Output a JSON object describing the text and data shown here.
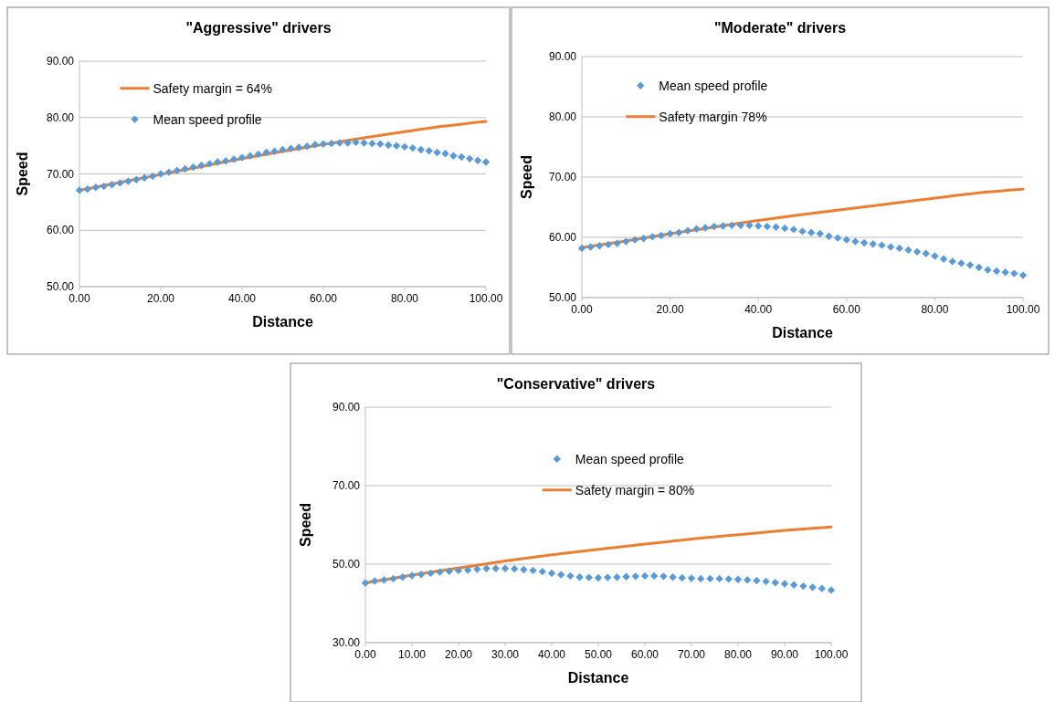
{
  "chart_data": [
    {
      "type": "line",
      "title": "\"Aggressive\" drivers",
      "xlabel": "Distance",
      "ylabel": "Speed",
      "xlim": [
        0,
        100
      ],
      "ylim": [
        50,
        90
      ],
      "xticks": [
        {
          "value": 0,
          "label": "0.00"
        },
        {
          "value": 20,
          "label": "20.00"
        },
        {
          "value": 40,
          "label": "40.00"
        },
        {
          "value": 60,
          "label": "60.00"
        },
        {
          "value": 80,
          "label": "80.00"
        },
        {
          "value": 100,
          "label": "100.00"
        }
      ],
      "yticks": [
        {
          "value": 50,
          "label": "50.00"
        },
        {
          "value": 60,
          "label": "60.00"
        },
        {
          "value": 70,
          "label": "70.00"
        },
        {
          "value": 80,
          "label": "80.00"
        },
        {
          "value": 90,
          "label": "90.00"
        }
      ],
      "grid": "y",
      "legend": "top left",
      "series": [
        {
          "name": "Safety margin = 64%",
          "type": "line",
          "color": "#ed7d31",
          "marker": "none",
          "x": [
            0,
            10,
            20,
            30,
            40,
            50,
            60,
            70,
            80,
            90,
            100
          ],
          "values": [
            67.1,
            68.5,
            69.9,
            71.3,
            72.7,
            74.0,
            75.2,
            76.4,
            77.5,
            78.5,
            79.3
          ]
        },
        {
          "name": "Mean speed profile",
          "type": "scatter",
          "color": "#5b9bd5",
          "marker": "diamond",
          "x": [
            0,
            2,
            4,
            6,
            8,
            10,
            12,
            14,
            16,
            18,
            20,
            22,
            24,
            26,
            28,
            30,
            32,
            34,
            36,
            38,
            40,
            42,
            44,
            46,
            48,
            50,
            52,
            54,
            56,
            58,
            60,
            62,
            64,
            66,
            68,
            70,
            72,
            74,
            76,
            78,
            80,
            82,
            84,
            86,
            88,
            90,
            92,
            94,
            96,
            98,
            100
          ],
          "values": [
            67.1,
            67.3,
            67.6,
            67.8,
            68.1,
            68.4,
            68.7,
            69.0,
            69.3,
            69.6,
            70.0,
            70.3,
            70.6,
            70.9,
            71.2,
            71.5,
            71.8,
            72.1,
            72.3,
            72.6,
            72.9,
            73.2,
            73.5,
            73.8,
            74.0,
            74.3,
            74.5,
            74.7,
            74.9,
            75.2,
            75.3,
            75.4,
            75.5,
            75.5,
            75.6,
            75.5,
            75.4,
            75.3,
            75.1,
            75.0,
            74.8,
            74.6,
            74.3,
            74.1,
            73.8,
            73.6,
            73.2,
            73.0,
            72.7,
            72.4,
            72.1
          ]
        }
      ]
    },
    {
      "type": "line",
      "title": "\"Moderate\" drivers",
      "xlabel": "Distance",
      "ylabel": "Speed",
      "xlim": [
        0,
        100
      ],
      "ylim": [
        50,
        90
      ],
      "xticks": [
        {
          "value": 0,
          "label": "0.00"
        },
        {
          "value": 20,
          "label": "20.00"
        },
        {
          "value": 40,
          "label": "40.00"
        },
        {
          "value": 60,
          "label": "60.00"
        },
        {
          "value": 80,
          "label": "80.00"
        },
        {
          "value": 100,
          "label": "100.00"
        }
      ],
      "yticks": [
        {
          "value": 50,
          "label": "50.00"
        },
        {
          "value": 60,
          "label": "60.00"
        },
        {
          "value": 70,
          "label": "70.00"
        },
        {
          "value": 80,
          "label": "80.00"
        },
        {
          "value": 90,
          "label": "90.00"
        }
      ],
      "grid": "y",
      "legend": "top left",
      "series": [
        {
          "name": "Mean speed profile",
          "type": "scatter",
          "color": "#5b9bd5",
          "marker": "diamond",
          "x": [
            0,
            2,
            4,
            6,
            8,
            10,
            12,
            14,
            16,
            18,
            20,
            22,
            24,
            26,
            28,
            30,
            32,
            34,
            36,
            38,
            40,
            42,
            44,
            46,
            48,
            50,
            52,
            54,
            56,
            58,
            60,
            62,
            64,
            66,
            68,
            70,
            72,
            74,
            76,
            78,
            80,
            82,
            84,
            86,
            88,
            90,
            92,
            94,
            96,
            98,
            100
          ],
          "values": [
            58.2,
            58.4,
            58.6,
            58.8,
            59.0,
            59.3,
            59.6,
            59.8,
            60.1,
            60.3,
            60.6,
            60.8,
            61.1,
            61.4,
            61.6,
            61.8,
            61.9,
            62.0,
            62.0,
            62.0,
            61.9,
            61.8,
            61.7,
            61.5,
            61.3,
            61.0,
            60.8,
            60.6,
            60.2,
            59.9,
            59.6,
            59.3,
            59.1,
            58.9,
            58.7,
            58.4,
            58.2,
            57.9,
            57.6,
            57.3,
            56.9,
            56.4,
            56.0,
            55.7,
            55.4,
            55.0,
            54.6,
            54.4,
            54.2,
            54.0,
            53.7
          ]
        },
        {
          "name": "Safety margin 78%",
          "type": "line",
          "color": "#ed7d31",
          "marker": "none",
          "x": [
            0,
            10,
            20,
            30,
            40,
            50,
            60,
            70,
            80,
            90,
            100
          ],
          "values": [
            58.3,
            59.4,
            60.6,
            61.7,
            62.8,
            63.8,
            64.7,
            65.6,
            66.5,
            67.4,
            68.0
          ]
        }
      ]
    },
    {
      "type": "line",
      "title": "\"Conservative\" drivers",
      "xlabel": "Distance",
      "ylabel": "Speed",
      "xlim": [
        0,
        100
      ],
      "ylim": [
        30,
        90
      ],
      "xticks": [
        {
          "value": 0,
          "label": "0.00"
        },
        {
          "value": 10,
          "label": "10.00"
        },
        {
          "value": 20,
          "label": "20.00"
        },
        {
          "value": 30,
          "label": "30.00"
        },
        {
          "value": 40,
          "label": "40.00"
        },
        {
          "value": 50,
          "label": "50.00"
        },
        {
          "value": 60,
          "label": "60.00"
        },
        {
          "value": 70,
          "label": "70.00"
        },
        {
          "value": 80,
          "label": "80.00"
        },
        {
          "value": 90,
          "label": "90.00"
        },
        {
          "value": 100,
          "label": "100.00"
        }
      ],
      "yticks": [
        {
          "value": 30,
          "label": "30.00"
        },
        {
          "value": 50,
          "label": "50.00"
        },
        {
          "value": 70,
          "label": "70.00"
        },
        {
          "value": 90,
          "label": "90.00"
        }
      ],
      "grid": "y",
      "legend": "top",
      "series": [
        {
          "name": "Mean speed profile",
          "type": "scatter",
          "color": "#5b9bd5",
          "marker": "diamond",
          "x": [
            0,
            2,
            4,
            6,
            8,
            10,
            12,
            14,
            16,
            18,
            20,
            22,
            24,
            26,
            28,
            30,
            32,
            34,
            36,
            38,
            40,
            42,
            44,
            46,
            48,
            50,
            52,
            54,
            56,
            58,
            60,
            62,
            64,
            66,
            68,
            70,
            72,
            74,
            76,
            78,
            80,
            82,
            84,
            86,
            88,
            90,
            92,
            94,
            96,
            98,
            100
          ],
          "values": [
            45.2,
            45.7,
            46.0,
            46.3,
            46.7,
            47.1,
            47.4,
            47.7,
            48.0,
            48.2,
            48.4,
            48.5,
            48.7,
            48.9,
            48.9,
            48.9,
            48.8,
            48.6,
            48.4,
            48.1,
            47.7,
            47.3,
            47.0,
            46.7,
            46.6,
            46.5,
            46.6,
            46.7,
            46.8,
            46.9,
            47.0,
            47.0,
            46.9,
            46.7,
            46.5,
            46.4,
            46.3,
            46.3,
            46.3,
            46.2,
            46.1,
            46.0,
            45.8,
            45.6,
            45.3,
            45.0,
            44.7,
            44.4,
            44.1,
            43.8,
            43.4
          ]
        },
        {
          "name": "Safety margin = 80%",
          "type": "line",
          "color": "#ed7d31",
          "marker": "none",
          "x": [
            0,
            10,
            20,
            30,
            40,
            50,
            60,
            70,
            80,
            90,
            100
          ],
          "values": [
            45.2,
            47.2,
            49.0,
            50.8,
            52.4,
            53.8,
            55.1,
            56.4,
            57.5,
            58.6,
            59.5
          ]
        }
      ]
    }
  ]
}
